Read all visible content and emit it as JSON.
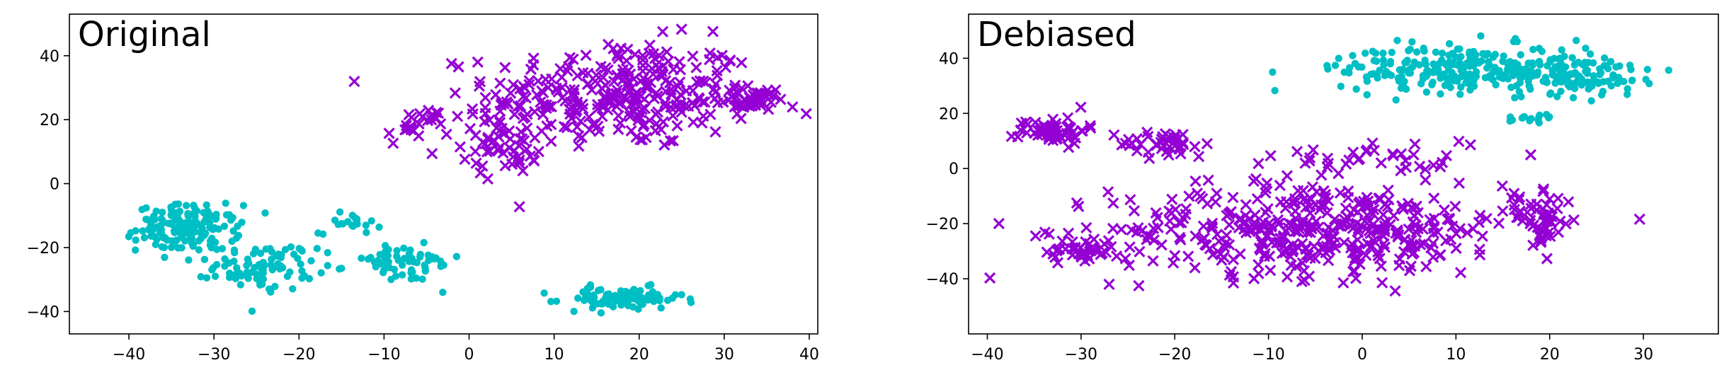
{
  "chart_data": [
    {
      "type": "scatter",
      "title": "Original",
      "xlabel": "",
      "ylabel": "",
      "xlim": [
        -47,
        41
      ],
      "ylim": [
        -47,
        53
      ],
      "x_ticks": [
        -40,
        -30,
        -20,
        -10,
        0,
        10,
        20,
        30,
        40
      ],
      "y_ticks": [
        -40,
        -20,
        0,
        20,
        40
      ],
      "x_tick_labels": [
        "−40",
        "−30",
        "−20",
        "−10",
        "0",
        "10",
        "20",
        "30",
        "40"
      ],
      "y_tick_labels": [
        "−40",
        "−20",
        "0",
        "20",
        "40"
      ],
      "grid": false,
      "legend": "none",
      "series": [
        {
          "marker": "x",
          "color": "#9400D3",
          "clusters": [
            {
              "center": [
                18,
                28
              ],
              "spread": [
                13,
                14
              ],
              "count": 300
            },
            {
              "center": [
                4,
                14
              ],
              "spread": [
                4,
                9
              ],
              "count": 60
            },
            {
              "center": [
                -6,
                18
              ],
              "spread": [
                3,
                5
              ],
              "count": 25
            },
            {
              "center": [
                33,
                26
              ],
              "spread": [
                3,
                3
              ],
              "count": 40
            }
          ]
        },
        {
          "marker": "o",
          "color": "#00BFC4",
          "clusters": [
            {
              "center": [
                -33,
                -14
              ],
              "spread": [
                5,
                6
              ],
              "count": 160
            },
            {
              "center": [
                -24,
                -26
              ],
              "spread": [
                5,
                6
              ],
              "count": 90
            },
            {
              "center": [
                -8,
                -25
              ],
              "spread": [
                6,
                5
              ],
              "count": 60
            },
            {
              "center": [
                -14,
                -12
              ],
              "spread": [
                3,
                3
              ],
              "count": 20
            },
            {
              "center": [
                18,
                -36
              ],
              "spread": [
                6,
                3
              ],
              "count": 90
            }
          ]
        }
      ]
    },
    {
      "type": "scatter",
      "title": "Debiased",
      "xlabel": "",
      "ylabel": "",
      "xlim": [
        -42,
        38
      ],
      "ylim": [
        -60,
        56
      ],
      "x_ticks": [
        -40,
        -30,
        -20,
        -10,
        0,
        10,
        20,
        30
      ],
      "y_ticks": [
        -40,
        -20,
        0,
        20,
        40
      ],
      "x_tick_labels": [
        "−40",
        "−30",
        "−20",
        "−10",
        "0",
        "10",
        "20",
        "30"
      ],
      "y_tick_labels": [
        "−40",
        "−20",
        "0",
        "20",
        "40"
      ],
      "grid": false,
      "legend": "none",
      "series": [
        {
          "marker": "x",
          "color": "#9400D3",
          "clusters": [
            {
              "center": [
                -33,
                14
              ],
              "spread": [
                3,
                4
              ],
              "count": 55
            },
            {
              "center": [
                -21,
                9
              ],
              "spread": [
                4,
                4
              ],
              "count": 40
            },
            {
              "center": [
                -5,
                -22
              ],
              "spread": [
                18,
                14
              ],
              "count": 420
            },
            {
              "center": [
                19,
                -18
              ],
              "spread": [
                3,
                7
              ],
              "count": 50
            },
            {
              "center": [
                -30,
                -30
              ],
              "spread": [
                3,
                4
              ],
              "count": 40
            },
            {
              "center": [
                0,
                4
              ],
              "spread": [
                12,
                6
              ],
              "count": 40
            }
          ]
        },
        {
          "marker": "o",
          "color": "#00BFC4",
          "clusters": [
            {
              "center": [
                12,
                36
              ],
              "spread": [
                12,
                7
              ],
              "count": 300
            },
            {
              "center": [
                24,
                33
              ],
              "spread": [
                5,
                6
              ],
              "count": 60
            },
            {
              "center": [
                18,
                18
              ],
              "spread": [
                3,
                2
              ],
              "count": 15
            }
          ]
        }
      ]
    }
  ]
}
